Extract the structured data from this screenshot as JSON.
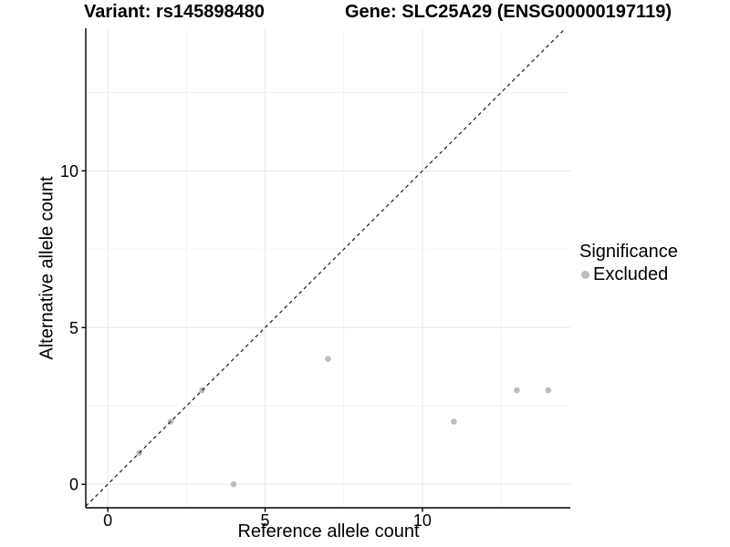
{
  "header": {
    "title_left": "Variant: rs145898480",
    "title_right": "Gene: SLC25A29 (ENSG00000197119)"
  },
  "chart_data": {
    "type": "scatter",
    "title_left": "Variant: rs145898480",
    "title_right": "Gene: SLC25A29 (ENSG00000197119)",
    "xlabel": "Reference allele count",
    "ylabel": "Alternative allele count",
    "xlim": [
      -0.7,
      14.7
    ],
    "ylim": [
      -0.75,
      14.55
    ],
    "x_ticks": [
      0,
      5,
      10
    ],
    "y_ticks": [
      0,
      5,
      10
    ],
    "x_minor_gridlines": [
      2.5,
      7.5,
      12.5
    ],
    "y_minor_gridlines": [
      2.5,
      7.5,
      12.5
    ],
    "grid": "major and minor gridlines on white background",
    "legend_position": "right-middle",
    "series": [
      {
        "name": "Excluded",
        "color": "#bdbdbd",
        "points": [
          {
            "x": 1,
            "y": 1
          },
          {
            "x": 2,
            "y": 2
          },
          {
            "x": 3,
            "y": 3
          },
          {
            "x": 4,
            "y": 0
          },
          {
            "x": 7,
            "y": 4
          },
          {
            "x": 11,
            "y": 2
          },
          {
            "x": 13,
            "y": 3
          },
          {
            "x": 14,
            "y": 3
          }
        ]
      }
    ],
    "identity_line": {
      "slope": 1,
      "intercept": 0,
      "style": "dashed",
      "color": "#1a1a1a"
    }
  },
  "legend": {
    "title": "Significance",
    "items": [
      {
        "label": "Excluded",
        "color": "#bdbdbd"
      }
    ]
  },
  "colors": {
    "background": "#ffffff",
    "point": "#bdbdbd",
    "grid_major": "#e8e8e8",
    "grid_minor": "#f3f3f3",
    "axis": "#000000",
    "tick_label": "#000000"
  }
}
